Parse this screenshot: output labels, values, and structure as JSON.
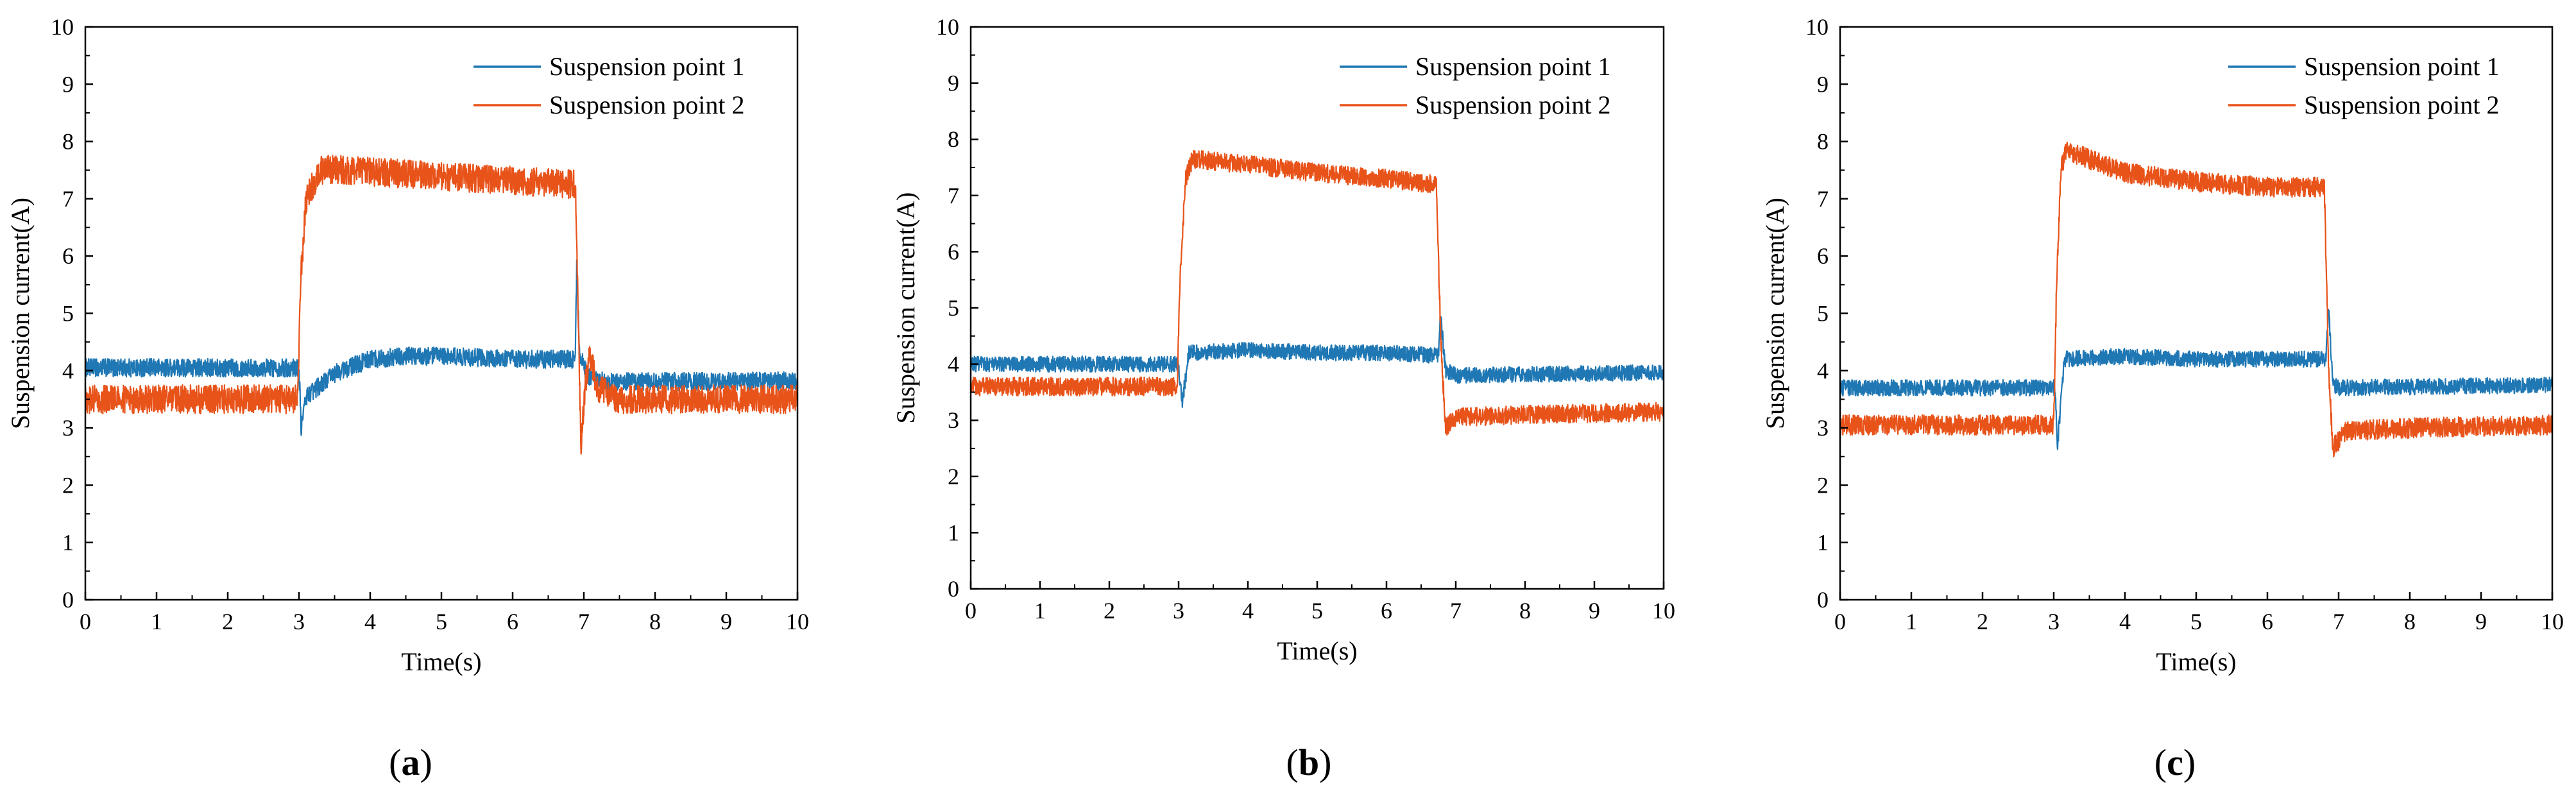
{
  "figure": {
    "panels": [
      {
        "tag_open": "(",
        "tag_letter": "a",
        "tag_close": ")"
      },
      {
        "tag_open": "(",
        "tag_letter": "b",
        "tag_close": ")"
      },
      {
        "tag_open": "(",
        "tag_letter": "c",
        "tag_close": ")"
      }
    ]
  },
  "chart_data": [
    {
      "type": "line",
      "title": "",
      "xlabel": "Time(s)",
      "ylabel": "Suspension current(A)",
      "xlim": [
        0,
        10
      ],
      "ylim": [
        0,
        10
      ],
      "xticks": [
        "0",
        "1",
        "2",
        "3",
        "4",
        "5",
        "6",
        "7",
        "8",
        "9",
        "10"
      ],
      "yticks": [
        "0",
        "1",
        "2",
        "3",
        "4",
        "5",
        "6",
        "7",
        "8",
        "9",
        "10"
      ],
      "legend_position": "top-right",
      "series": [
        {
          "name": "Suspension point 1",
          "color": "#1f77b4",
          "noise": 0.32,
          "points": [
            [
              0,
              4.05
            ],
            [
              3.0,
              4.05
            ],
            [
              3.03,
              3.0
            ],
            [
              3.1,
              3.55
            ],
            [
              3.5,
              3.95
            ],
            [
              4.0,
              4.2
            ],
            [
              4.5,
              4.25
            ],
            [
              5.0,
              4.25
            ],
            [
              6.0,
              4.2
            ],
            [
              6.7,
              4.2
            ],
            [
              6.88,
              4.2
            ],
            [
              6.9,
              5.8
            ],
            [
              6.94,
              4.3
            ],
            [
              7.05,
              3.9
            ],
            [
              7.3,
              3.8
            ],
            [
              10,
              3.82
            ]
          ]
        },
        {
          "name": "Suspension point 2",
          "color": "#e8531a",
          "noise": 0.5,
          "points": [
            [
              0,
              3.5
            ],
            [
              2.98,
              3.5
            ],
            [
              3.02,
              5.5
            ],
            [
              3.1,
              7.0
            ],
            [
              3.3,
              7.5
            ],
            [
              3.4,
              7.52
            ],
            [
              6.85,
              7.25
            ],
            [
              6.88,
              7.25
            ],
            [
              6.96,
              2.6
            ],
            [
              7.02,
              3.8
            ],
            [
              7.08,
              4.25
            ],
            [
              7.2,
              3.7
            ],
            [
              7.5,
              3.5
            ],
            [
              10,
              3.5
            ]
          ]
        }
      ]
    },
    {
      "type": "line",
      "title": "",
      "xlabel": "Time(s)",
      "ylabel": "Suspension current(A)",
      "xlim": [
        0,
        10
      ],
      "ylim": [
        0,
        10
      ],
      "xticks": [
        "0",
        "1",
        "2",
        "3",
        "4",
        "5",
        "6",
        "7",
        "8",
        "9",
        "10"
      ],
      "yticks": [
        "0",
        "1",
        "2",
        "3",
        "4",
        "5",
        "6",
        "7",
        "8",
        "9",
        "10"
      ],
      "legend_position": "top-right",
      "series": [
        {
          "name": "Suspension point 1",
          "color": "#1f77b4",
          "noise": 0.28,
          "points": [
            [
              0,
              4.0
            ],
            [
              3.0,
              4.0
            ],
            [
              3.05,
              3.3
            ],
            [
              3.15,
              4.2
            ],
            [
              4.0,
              4.25
            ],
            [
              5.0,
              4.2
            ],
            [
              6.0,
              4.2
            ],
            [
              6.75,
              4.15
            ],
            [
              6.78,
              4.9
            ],
            [
              6.85,
              3.9
            ],
            [
              7.0,
              3.8
            ],
            [
              10,
              3.85
            ]
          ]
        },
        {
          "name": "Suspension point 2",
          "color": "#e8531a",
          "noise": 0.33,
          "points": [
            [
              0,
              3.6
            ],
            [
              2.98,
              3.6
            ],
            [
              3.02,
              5.5
            ],
            [
              3.1,
              7.3
            ],
            [
              3.2,
              7.65
            ],
            [
              4.0,
              7.55
            ],
            [
              5.0,
              7.4
            ],
            [
              6.0,
              7.3
            ],
            [
              6.72,
              7.2
            ],
            [
              6.78,
              4.6
            ],
            [
              6.85,
              2.85
            ],
            [
              7.0,
              3.05
            ],
            [
              8.0,
              3.1
            ],
            [
              10,
              3.15
            ]
          ]
        }
      ]
    },
    {
      "type": "line",
      "title": "",
      "xlabel": "Time(s)",
      "ylabel": "Suspension current(A)",
      "xlim": [
        0,
        10
      ],
      "ylim": [
        0,
        10
      ],
      "xticks": [
        "0",
        "1",
        "2",
        "3",
        "4",
        "5",
        "6",
        "7",
        "8",
        "9",
        "10"
      ],
      "yticks": [
        "0",
        "1",
        "2",
        "3",
        "4",
        "5",
        "6",
        "7",
        "8",
        "9",
        "10"
      ],
      "legend_position": "top-right",
      "series": [
        {
          "name": "Suspension point 1",
          "color": "#1f77b4",
          "noise": 0.28,
          "points": [
            [
              0,
              3.7
            ],
            [
              3.02,
              3.7
            ],
            [
              3.05,
              2.65
            ],
            [
              3.15,
              4.2
            ],
            [
              4.0,
              4.25
            ],
            [
              5.0,
              4.2
            ],
            [
              6.0,
              4.2
            ],
            [
              6.82,
              4.2
            ],
            [
              6.86,
              5.1
            ],
            [
              6.92,
              3.75
            ],
            [
              7.0,
              3.7
            ],
            [
              10,
              3.75
            ]
          ]
        },
        {
          "name": "Suspension point 2",
          "color": "#e8531a",
          "noise": 0.35,
          "points": [
            [
              0,
              3.05
            ],
            [
              3.0,
              3.05
            ],
            [
              3.04,
              5.5
            ],
            [
              3.1,
              7.5
            ],
            [
              3.18,
              7.85
            ],
            [
              4.0,
              7.45
            ],
            [
              5.0,
              7.3
            ],
            [
              6.0,
              7.2
            ],
            [
              6.8,
              7.2
            ],
            [
              6.86,
              4.0
            ],
            [
              6.92,
              2.65
            ],
            [
              7.1,
              2.95
            ],
            [
              8.0,
              3.0
            ],
            [
              10,
              3.05
            ]
          ]
        }
      ]
    }
  ]
}
